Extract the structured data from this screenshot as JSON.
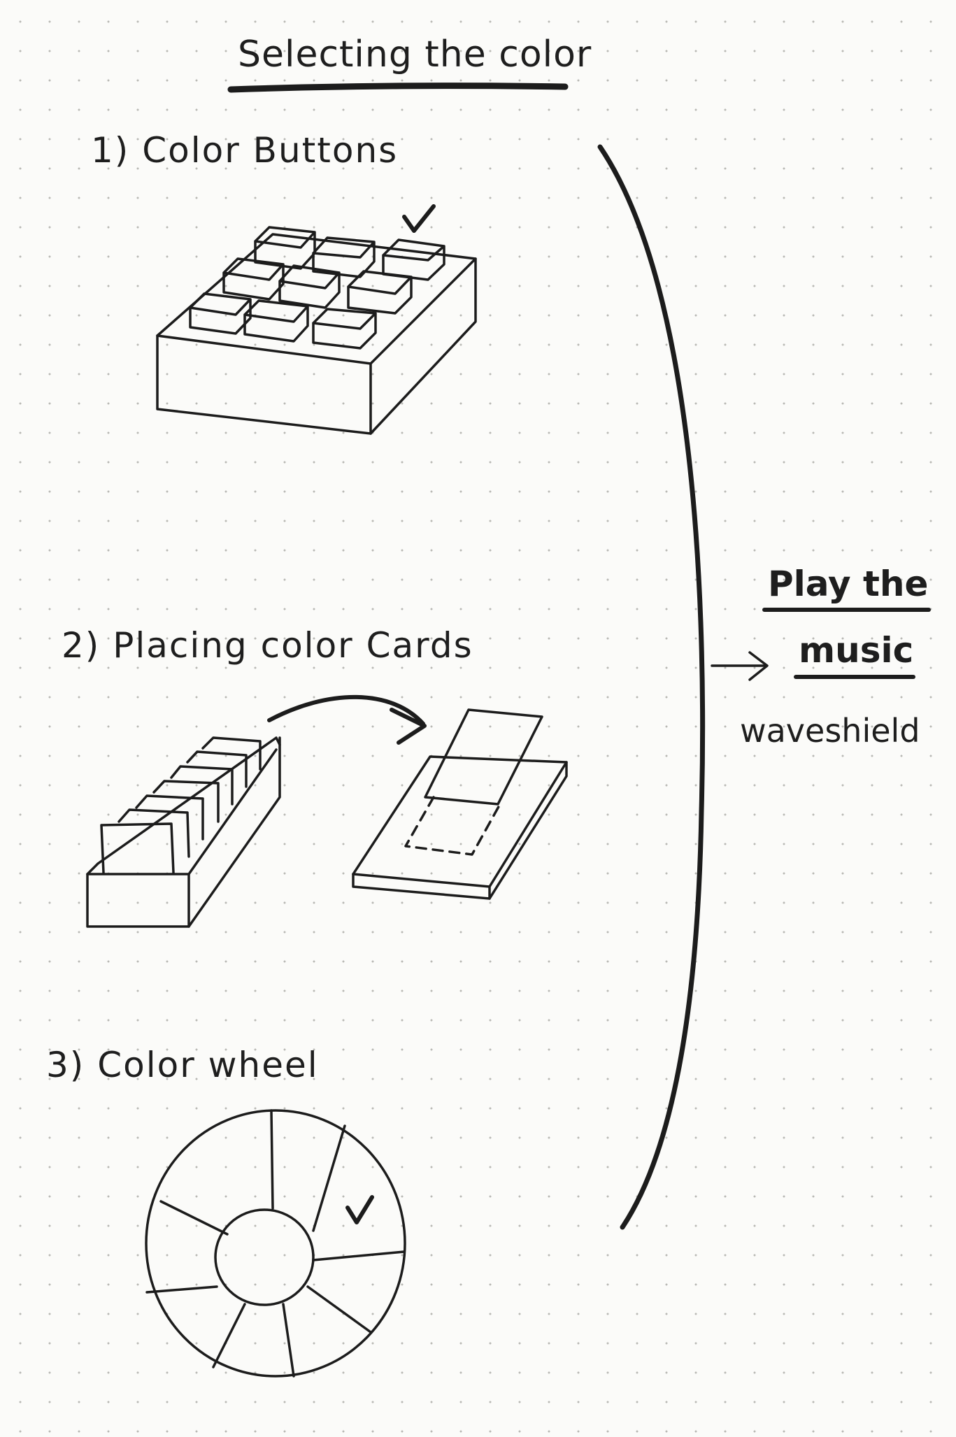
{
  "title": "Selecting the color",
  "options": [
    {
      "label": "1) Color Buttons",
      "icon": "button-grid-sketch"
    },
    {
      "label": "2) Placing color Cards",
      "icon": "card-tray-sketch"
    },
    {
      "label": "3) Color wheel",
      "icon": "color-wheel-sketch"
    }
  ],
  "outcome": {
    "line1": "Play the",
    "line2": "music",
    "note": "waveshield"
  },
  "colors": {
    "ink": "#1c1c1c",
    "paper": "#fbfbf9",
    "dot": "#b9b9b4"
  }
}
